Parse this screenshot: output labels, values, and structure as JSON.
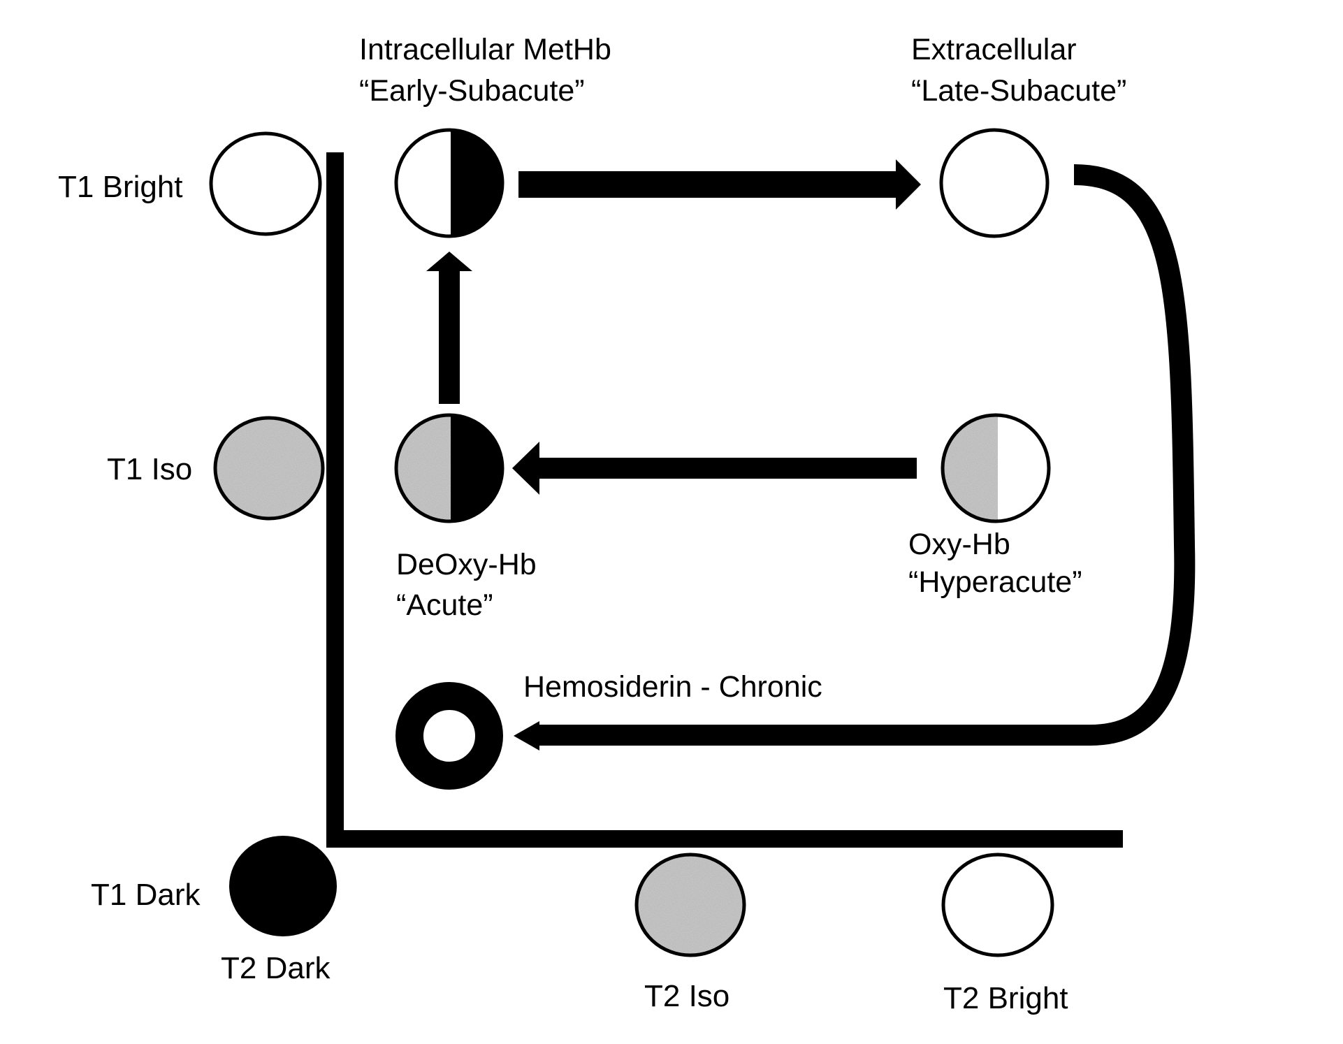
{
  "colors": {
    "ink": "#000000",
    "paper": "#ffffff",
    "iso_gray": "#b5b5b5"
  },
  "axis_labels": {
    "t1_bright": "T1 Bright",
    "t1_iso": "T1 Iso",
    "t1_dark": "T1 Dark",
    "t2_dark": "T2 Dark",
    "t2_iso": "T2 Iso",
    "t2_bright": "T2 Bright"
  },
  "stages": {
    "early_subacute": {
      "line1": "Intracellular MetHb",
      "line2": "“Early-Subacute”"
    },
    "late_subacute": {
      "line1": "Extracellular",
      "line2": "“Late-Subacute”"
    },
    "acute": {
      "line1": "DeOxy-Hb",
      "line2": "“Acute”"
    },
    "hyperacute": {
      "line1": "Oxy-Hb",
      "line2": "“Hyperacute”"
    },
    "chronic": {
      "line1": "Hemosiderin - Chronic"
    }
  }
}
